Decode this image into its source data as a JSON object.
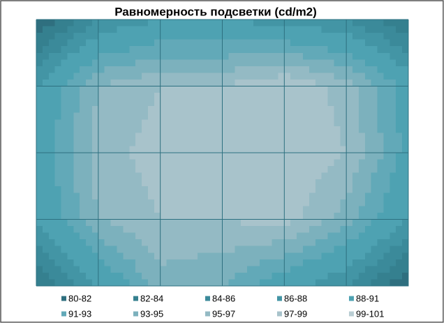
{
  "chart_data": {
    "type": "contour",
    "title": "Равномерность подсветки (cd/m2)",
    "z": [
      [
        80,
        86,
        88,
        88,
        87,
        86,
        82
      ],
      [
        88,
        95,
        97,
        97,
        99,
        96,
        90
      ],
      [
        89,
        96,
        98,
        98,
        99,
        97,
        90
      ],
      [
        88,
        95,
        97,
        97,
        98,
        94,
        88
      ],
      [
        82,
        88,
        94,
        93,
        89,
        86,
        80
      ]
    ],
    "bands": [
      {
        "label": "80-82",
        "from": 80,
        "to": 82,
        "color": "#2f6f7f"
      },
      {
        "label": "82-84",
        "from": 82,
        "to": 84,
        "color": "#35808f"
      },
      {
        "label": "84-86",
        "from": 84,
        "to": 86,
        "color": "#3b8a9a"
      },
      {
        "label": "86-88",
        "from": 86,
        "to": 88,
        "color": "#4395a5"
      },
      {
        "label": "88-91",
        "from": 88,
        "to": 91,
        "color": "#4ea2b2"
      },
      {
        "label": "91-93",
        "from": 91,
        "to": 93,
        "color": "#62a9b8"
      },
      {
        "label": "93-95",
        "from": 93,
        "to": 95,
        "color": "#7cb1bd"
      },
      {
        "label": "95-97",
        "from": 95,
        "to": 97,
        "color": "#94bac4"
      },
      {
        "label": "97-99",
        "from": 97,
        "to": 99,
        "color": "#a8c3cb"
      },
      {
        "label": "99-101",
        "from": 99,
        "to": 101,
        "color": "#b9cdd3"
      }
    ]
  }
}
